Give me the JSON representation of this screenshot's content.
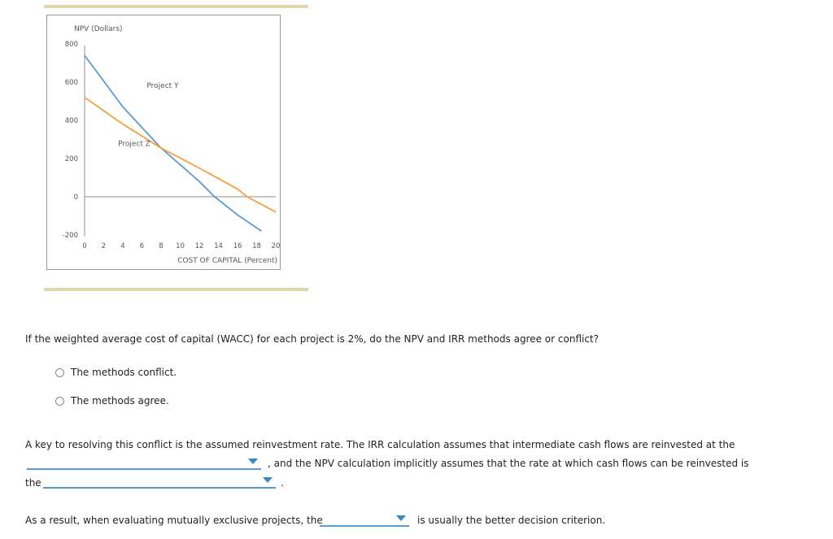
{
  "chart_data": {
    "type": "line",
    "title": "",
    "ylabel": "NPV (Dollars)",
    "xlabel": "COST OF CAPITAL (Percent)",
    "xlim": [
      0,
      20
    ],
    "ylim": [
      -200,
      800
    ],
    "x_ticks": [
      "0",
      "2",
      "4",
      "6",
      "8",
      "10",
      "12",
      "14",
      "16",
      "18",
      "20"
    ],
    "y_ticks": [
      "800",
      "600",
      "400",
      "200",
      "0",
      "-200"
    ],
    "grid": false,
    "legend": "inline labels",
    "series": [
      {
        "name": "Project Y",
        "color": "#5b9bd1",
        "x": [
          0,
          4,
          8,
          12,
          13.6,
          16,
          18.5
        ],
        "values": [
          740,
          470,
          255,
          80,
          0,
          -95,
          -180
        ]
      },
      {
        "name": "Project Z",
        "color": "#f5a03c",
        "x": [
          0,
          4,
          8,
          12,
          16,
          17,
          20
        ],
        "values": [
          520,
          380,
          255,
          150,
          40,
          0,
          -80
        ]
      }
    ],
    "annotations": [
      {
        "text": "Project Y",
        "x": 6.5,
        "y": 570
      },
      {
        "text": "Project Z",
        "x": 3.5,
        "y": 265
      }
    ]
  },
  "question1": {
    "text": "If the weighted average cost of capital (WACC) for each project is 2%, do the NPV and IRR methods agree or conflict?",
    "options": [
      "The methods conflict.",
      "The methods agree."
    ]
  },
  "question2": {
    "line1": "A key to resolving this conflict is the assumed reinvestment rate. The IRR calculation assumes that intermediate cash flows are reinvested at the",
    "line2_after": ", and the NPV calculation implicitly assumes that the rate at which cash flows can be reinvested is",
    "line3_before": "the",
    "line3_after": ".",
    "dropdown1_value": "",
    "dropdown2_value": ""
  },
  "question3": {
    "before": "As a result, when evaluating mutually exclusive projects, the",
    "after": "is usually the better decision criterion.",
    "dropdown_value": ""
  }
}
